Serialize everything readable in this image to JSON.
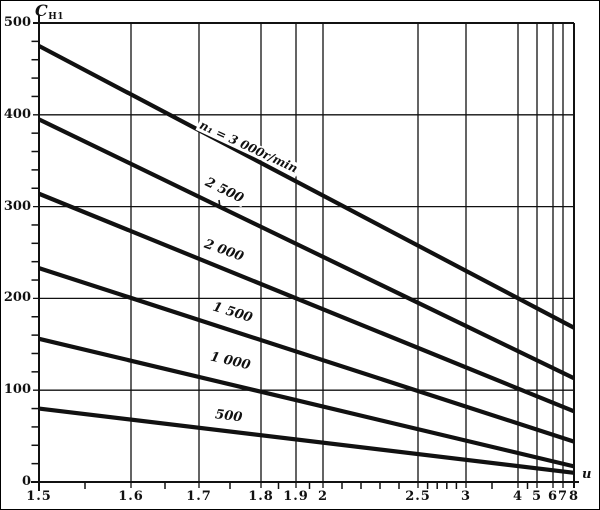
{
  "chart_data": {
    "type": "line",
    "ylabel": {
      "text": "C",
      "sub": "H1"
    },
    "xlabel": "u",
    "x_scale": "non-uniform compressed (log-like), hand-drafted",
    "xlim": [
      1.5,
      8
    ],
    "ylim": [
      0,
      500
    ],
    "grid": true,
    "x_ticks": [
      "1.5",
      "1.6",
      "1.7",
      "1.8",
      "1.9",
      "2",
      "2.5",
      "3",
      "4",
      "5",
      "6",
      "7",
      "8"
    ],
    "x_tick_values": [
      1.5,
      1.6,
      1.7,
      1.8,
      1.9,
      2,
      2.5,
      3,
      4,
      5,
      6,
      7,
      8
    ],
    "x_minor_ticks": [
      1.55,
      1.65,
      1.75,
      1.85,
      1.95,
      2.1,
      2.2,
      2.3,
      2.4,
      2.6,
      2.7,
      2.8,
      2.9,
      3.5,
      4.5
    ],
    "y_ticks": [
      "500",
      "400",
      "300",
      "200",
      "100",
      "0"
    ],
    "y_tick_values": [
      500,
      400,
      300,
      200,
      100,
      0
    ],
    "y_minor_step": 20,
    "series": [
      {
        "name": "n1-3000",
        "label": "n₁ = 3 000r/min",
        "points": [
          {
            "u": 1.5,
            "C": 475
          },
          {
            "u": 8,
            "C": 168
          }
        ]
      },
      {
        "name": "n1-2500",
        "label": "2 500",
        "points": [
          {
            "u": 1.5,
            "C": 395
          },
          {
            "u": 8,
            "C": 113
          }
        ]
      },
      {
        "name": "n1-2000",
        "label": "2 000",
        "points": [
          {
            "u": 1.5,
            "C": 314
          },
          {
            "u": 8,
            "C": 77
          }
        ]
      },
      {
        "name": "n1-1500",
        "label": "1 500",
        "points": [
          {
            "u": 1.5,
            "C": 233
          },
          {
            "u": 8,
            "C": 44
          }
        ]
      },
      {
        "name": "n1-1000",
        "label": "1 000",
        "points": [
          {
            "u": 1.5,
            "C": 156
          },
          {
            "u": 8,
            "C": 17
          }
        ]
      },
      {
        "name": "n1-500",
        "label": "500",
        "points": [
          {
            "u": 1.5,
            "C": 80
          },
          {
            "u": 8,
            "C": 10
          }
        ]
      }
    ],
    "ink_color": "#111111",
    "background": "#ffffff"
  }
}
